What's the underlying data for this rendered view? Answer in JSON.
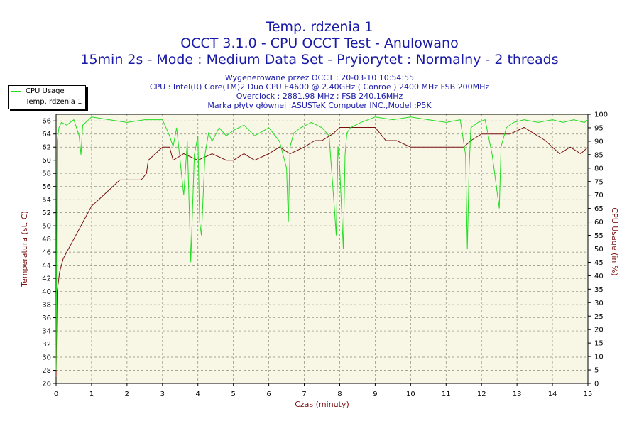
{
  "header": {
    "title": "Temp. rdzenia 1",
    "subtitle": "OCCT 3.1.0 - CPU OCCT Test - Anulowano",
    "mode_line": "15min 2s - Mode : Medium Data Set - Pryiorytet : Normalny - 2 threads",
    "info_lines": [
      "Wygenerowane przez OCCT : 20-03-10 10:54:55",
      "CPU : Intel(R) Core(TM)2 Duo CPU E4600 @ 2.40GHz ( Conroe ) 2400 MHz FSB 200MHz",
      "Overclock : 2881.98 MHz ; FSB 240.16MHz",
      "Marka płyty głównej :ASUSTeK Computer INC.,Model :P5K"
    ]
  },
  "colors": {
    "plot_bg": "#f8f7e6",
    "grid": "#8a8a7a",
    "cpu_usage": "#22dd22",
    "temperature": "#7a1010",
    "axis_text": "#7a1010",
    "title_text": "#1a1aa8"
  },
  "legend": {
    "items": [
      {
        "label": "CPU Usage",
        "color": "#22dd22"
      },
      {
        "label": "Temp. rdzenia 1",
        "color": "#7a1010"
      }
    ]
  },
  "chart_data": {
    "type": "line",
    "title": "Temp. rdzenia 1",
    "xlabel": "Czas (minuty)",
    "ylabel": "Temperatura (st. C)",
    "y2label": "CPU Usage (in %)",
    "xlim": [
      0,
      15
    ],
    "ylim": [
      26,
      67
    ],
    "y2lim": [
      0,
      100
    ],
    "x_ticks": [
      "0",
      "1",
      "2",
      "3",
      "4",
      "5",
      "6",
      "7",
      "8",
      "9",
      "10",
      "11",
      "12",
      "13",
      "14",
      "15"
    ],
    "y_ticks": [
      "26",
      "28",
      "30",
      "32",
      "34",
      "36",
      "38",
      "40",
      "42",
      "44",
      "46",
      "48",
      "50",
      "52",
      "54",
      "56",
      "58",
      "60",
      "62",
      "64",
      "66"
    ],
    "y2_ticks": [
      "0",
      "5",
      "10",
      "15",
      "20",
      "25",
      "30",
      "35",
      "40",
      "45",
      "50",
      "55",
      "60",
      "65",
      "70",
      "75",
      "80",
      "85",
      "90",
      "95",
      "100"
    ],
    "grid": true,
    "legend_position": "top-left",
    "series": [
      {
        "name": "Temp. rdzenia 1",
        "axis": "left",
        "x": [
          0,
          0.03,
          0.1,
          0.2,
          0.3,
          0.4,
          0.5,
          0.6,
          0.7,
          0.8,
          0.9,
          1.0,
          1.2,
          1.4,
          1.6,
          1.8,
          2.0,
          2.2,
          2.4,
          2.55,
          2.6,
          2.8,
          3.0,
          3.2,
          3.3,
          3.6,
          4.0,
          4.4,
          4.8,
          5.0,
          5.3,
          5.6,
          6.0,
          6.3,
          6.6,
          7.0,
          7.3,
          7.5,
          7.8,
          8.0,
          8.3,
          8.6,
          9.0,
          9.3,
          9.6,
          10.0,
          10.4,
          10.8,
          11.2,
          11.5,
          11.7,
          12.0,
          12.4,
          12.8,
          13.2,
          13.5,
          13.8,
          14.0,
          14.2,
          14.5,
          14.8,
          15.0
        ],
        "values": [
          27,
          40,
          43,
          45,
          46,
          47,
          48,
          49,
          50,
          51,
          52,
          53,
          54,
          55,
          56,
          57,
          57,
          57,
          57,
          58,
          60,
          61,
          62,
          62,
          60,
          61,
          60,
          61,
          60,
          60,
          61,
          60,
          61,
          62,
          61,
          62,
          63,
          63,
          64,
          65,
          65,
          65,
          65,
          63,
          63,
          62,
          62,
          62,
          62,
          62,
          63,
          64,
          64,
          64,
          65,
          64,
          63,
          62,
          61,
          62,
          61,
          62
        ]
      },
      {
        "name": "CPU Usage",
        "axis": "right",
        "x": [
          0,
          0.03,
          0.08,
          0.15,
          0.3,
          0.5,
          0.65,
          0.7,
          0.75,
          1.0,
          1.5,
          2.0,
          2.5,
          3.0,
          3.2,
          3.3,
          3.4,
          3.6,
          3.7,
          3.8,
          3.9,
          4.0,
          4.05,
          4.1,
          4.2,
          4.3,
          4.4,
          4.6,
          4.8,
          5.0,
          5.3,
          5.6,
          6.0,
          6.3,
          6.5,
          6.55,
          6.6,
          6.7,
          6.9,
          7.2,
          7.5,
          7.7,
          7.85,
          7.9,
          7.95,
          8.0,
          8.1,
          8.15,
          8.2,
          8.3,
          8.6,
          9.0,
          9.5,
          10.0,
          10.5,
          11.0,
          11.4,
          11.55,
          11.6,
          11.65,
          11.7,
          11.9,
          12.1,
          12.3,
          12.45,
          12.5,
          12.55,
          12.7,
          12.9,
          13.2,
          13.6,
          14.0,
          14.3,
          14.6,
          14.9,
          15.0
        ],
        "values": [
          5,
          90,
          95,
          97,
          96,
          98,
          92,
          85,
          96,
          99,
          98,
          97,
          98,
          98,
          92,
          88,
          95,
          70,
          90,
          45,
          85,
          92,
          60,
          55,
          85,
          93,
          90,
          95,
          92,
          94,
          96,
          92,
          95,
          90,
          80,
          60,
          88,
          93,
          95,
          97,
          95,
          92,
          65,
          55,
          88,
          80,
          50,
          85,
          93,
          95,
          97,
          99,
          98,
          99,
          98,
          97,
          98,
          85,
          50,
          80,
          95,
          97,
          98,
          85,
          70,
          65,
          88,
          95,
          97,
          98,
          97,
          98,
          97,
          98,
          97,
          98
        ]
      }
    ]
  }
}
